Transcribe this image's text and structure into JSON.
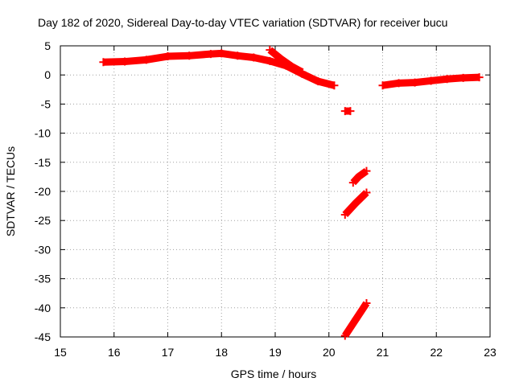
{
  "chart_data": {
    "type": "scatter",
    "title": "Day 182 of 2020, Sidereal Day-to-day VTEC variation (SDTVAR) for receiver bucu",
    "xlabel": "GPS time / hours",
    "ylabel": "SDTVAR / TECUs",
    "xlim": [
      15,
      23
    ],
    "ylim": [
      -45,
      5
    ],
    "xticks": [
      15,
      16,
      17,
      18,
      19,
      20,
      21,
      22,
      23
    ],
    "yticks": [
      5,
      0,
      -5,
      -10,
      -15,
      -20,
      -25,
      -30,
      -35,
      -40,
      -45
    ],
    "grid": true,
    "series_color": "#ff0000",
    "series": [
      {
        "x": [
          15.8,
          16.2,
          16.6,
          17.0,
          17.4,
          17.8,
          18.0,
          18.3,
          18.6,
          18.9,
          19.2,
          19.5,
          19.8,
          20.1
        ],
        "y": [
          2.2,
          2.3,
          2.6,
          3.2,
          3.3,
          3.6,
          3.7,
          3.3,
          3.0,
          2.4,
          1.6,
          0.2,
          -1.1,
          -1.8
        ]
      },
      {
        "x": [
          18.9,
          19.1,
          19.3,
          19.5
        ],
        "y": [
          4.3,
          2.8,
          1.5,
          0.5
        ]
      },
      {
        "x": [
          20.3,
          20.4
        ],
        "y": [
          -6.2,
          -6.2
        ]
      },
      {
        "x": [
          20.45,
          20.55,
          20.7
        ],
        "y": [
          -18.5,
          -17.5,
          -16.5
        ]
      },
      {
        "x": [
          20.3,
          20.5,
          20.7
        ],
        "y": [
          -24.0,
          -22.0,
          -20.2
        ]
      },
      {
        "x": [
          20.3,
          20.5,
          20.7
        ],
        "y": [
          -44.8,
          -42.0,
          -39.2
        ]
      },
      {
        "x": [
          21.0,
          21.3,
          21.6,
          21.9,
          22.2,
          22.5,
          22.8
        ],
        "y": [
          -1.8,
          -1.4,
          -1.3,
          -1.0,
          -0.7,
          -0.5,
          -0.4
        ]
      }
    ]
  }
}
